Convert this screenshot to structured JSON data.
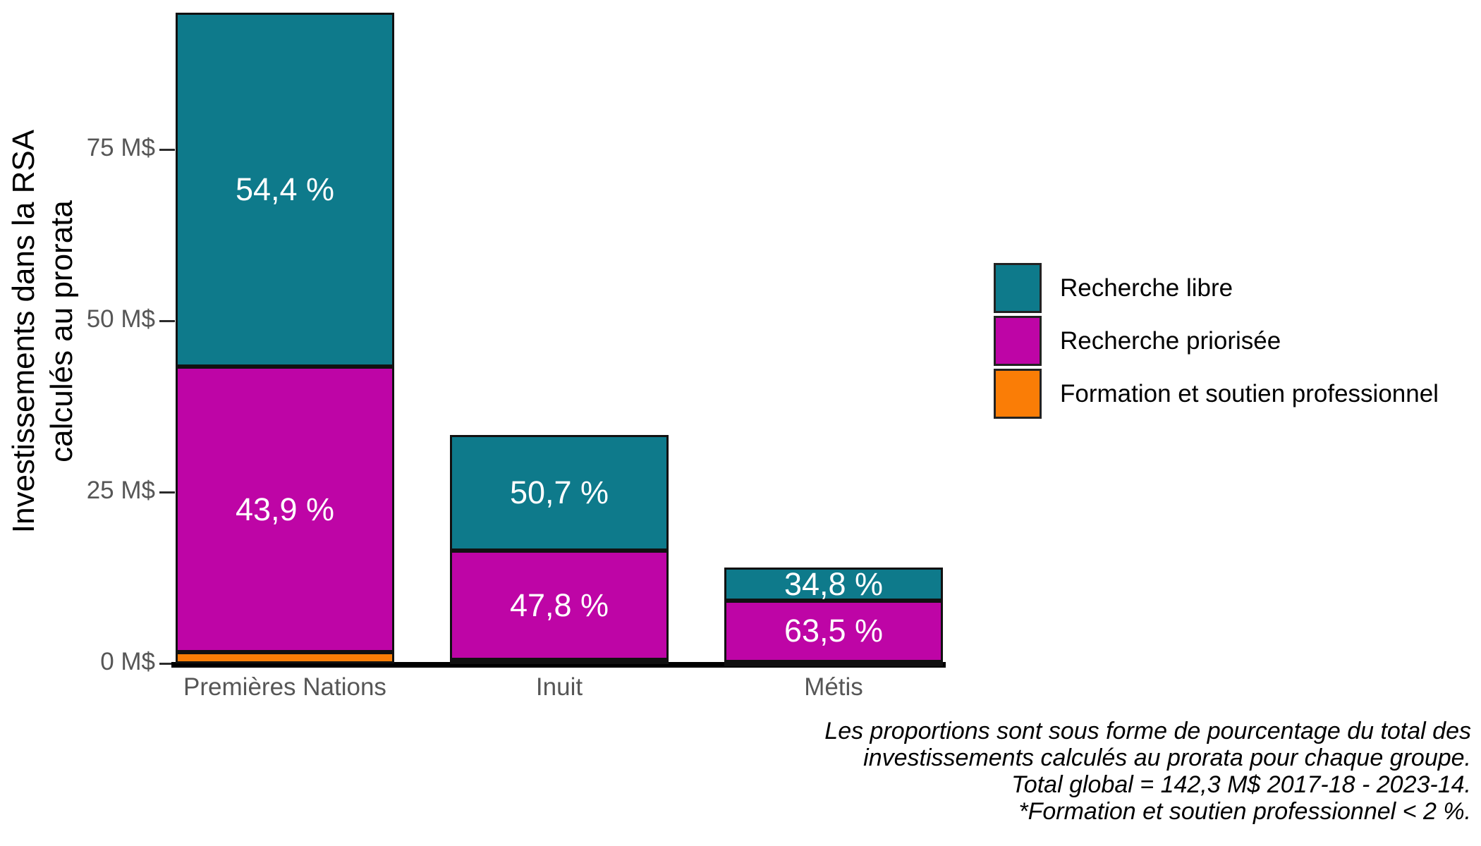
{
  "chart_data": {
    "type": "bar",
    "stacked": true,
    "orientation": "vertical",
    "grid": false,
    "legend_position": "right",
    "unit": "M$",
    "ylabel_lines": [
      "Investissements dans la RSA",
      "calculés au prorata"
    ],
    "ylim": [
      0,
      97
    ],
    "yticks": [
      {
        "label": "0 M$",
        "value": 0
      },
      {
        "label": "25 M$",
        "value": 25
      },
      {
        "label": "50 M$",
        "value": 50
      },
      {
        "label": "75 M$",
        "value": 75
      }
    ],
    "legend": [
      {
        "name": "Recherche libre",
        "color": "#0E7A8B"
      },
      {
        "name": "Recherche priorisée",
        "color": "#BE05A6"
      },
      {
        "name": "Formation et soutien professionnel",
        "color": "#FA7D06"
      }
    ],
    "categories": [
      "Premières Nations",
      "Inuit",
      "Métis"
    ],
    "groups": [
      {
        "category": "Premières Nations",
        "total_m": 95.0,
        "segments": [
          {
            "series": "Formation et soutien professionnel",
            "pct": 1.7,
            "label": ""
          },
          {
            "series": "Recherche priorisée",
            "pct": 43.9,
            "label": "43,9 %"
          },
          {
            "series": "Recherche libre",
            "pct": 54.4,
            "label": "54,4 %"
          }
        ]
      },
      {
        "category": "Inuit",
        "total_m": 33.3,
        "segments": [
          {
            "series": "Formation et soutien professionnel",
            "pct": 1.5,
            "label": ""
          },
          {
            "series": "Recherche priorisée",
            "pct": 47.8,
            "label": "47,8 %"
          },
          {
            "series": "Recherche libre",
            "pct": 50.7,
            "label": "50,7 %"
          }
        ]
      },
      {
        "category": "Métis",
        "total_m": 14.0,
        "segments": [
          {
            "series": "Formation et soutien professionnel",
            "pct": 1.7,
            "label": ""
          },
          {
            "series": "Recherche priorisée",
            "pct": 63.5,
            "label": "63,5 %"
          },
          {
            "series": "Recherche libre",
            "pct": 34.8,
            "label": "34,8 %"
          }
        ]
      }
    ],
    "colors": {
      "axis_text": "#565656",
      "axis_line": "#000000",
      "bar_border": "#111111",
      "bar_label_text": "#ffffff"
    }
  },
  "footnote": {
    "lines": [
      "Les proportions sont sous forme de pourcentage du total des",
      "investissements calculés au prorata pour chaque groupe.",
      "Total global = 142,3 M$ 2017-18 - 2023-14.",
      "*Formation et soutien professionnel < 2 %."
    ]
  }
}
